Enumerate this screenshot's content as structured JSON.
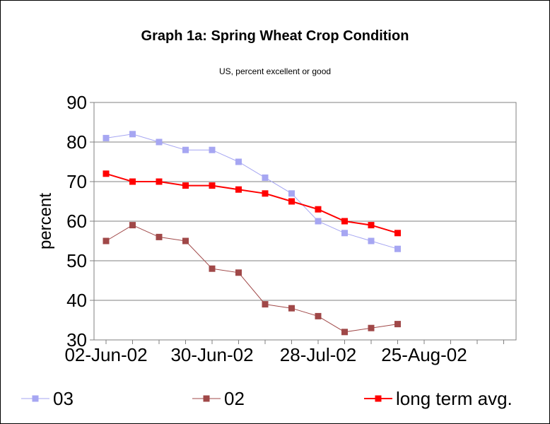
{
  "chart_data": {
    "type": "line",
    "title": "Graph 1a:  Spring Wheat Crop Condition",
    "subtitle": "US, percent excellent or good",
    "y_label": "percent",
    "categories": [
      "02-Jun-02",
      null,
      null,
      null,
      "30-Jun-02",
      null,
      null,
      null,
      "28-Jul-02",
      null,
      null,
      null,
      "25-Aug-02",
      null,
      null,
      null
    ],
    "series": [
      {
        "name": "03",
        "color": "#a6a6f2",
        "values": [
          81,
          82,
          80,
          78,
          78,
          75,
          71,
          67,
          60,
          57,
          55,
          53,
          null,
          null,
          null,
          null
        ]
      },
      {
        "name": "02",
        "color": "#a04848",
        "values": [
          55,
          59,
          56,
          55,
          48,
          47,
          39,
          38,
          36,
          32,
          33,
          34,
          null,
          null,
          null,
          null
        ]
      },
      {
        "name": "long term avg.",
        "color": "#ff0000",
        "values": [
          72,
          70,
          70,
          69,
          69,
          68,
          67,
          65,
          63,
          60,
          59,
          57,
          null,
          null,
          null,
          null
        ]
      }
    ],
    "ylim": [
      30,
      90
    ],
    "yticks": [
      30,
      40,
      50,
      60,
      70,
      80,
      90
    ],
    "grid": true
  }
}
